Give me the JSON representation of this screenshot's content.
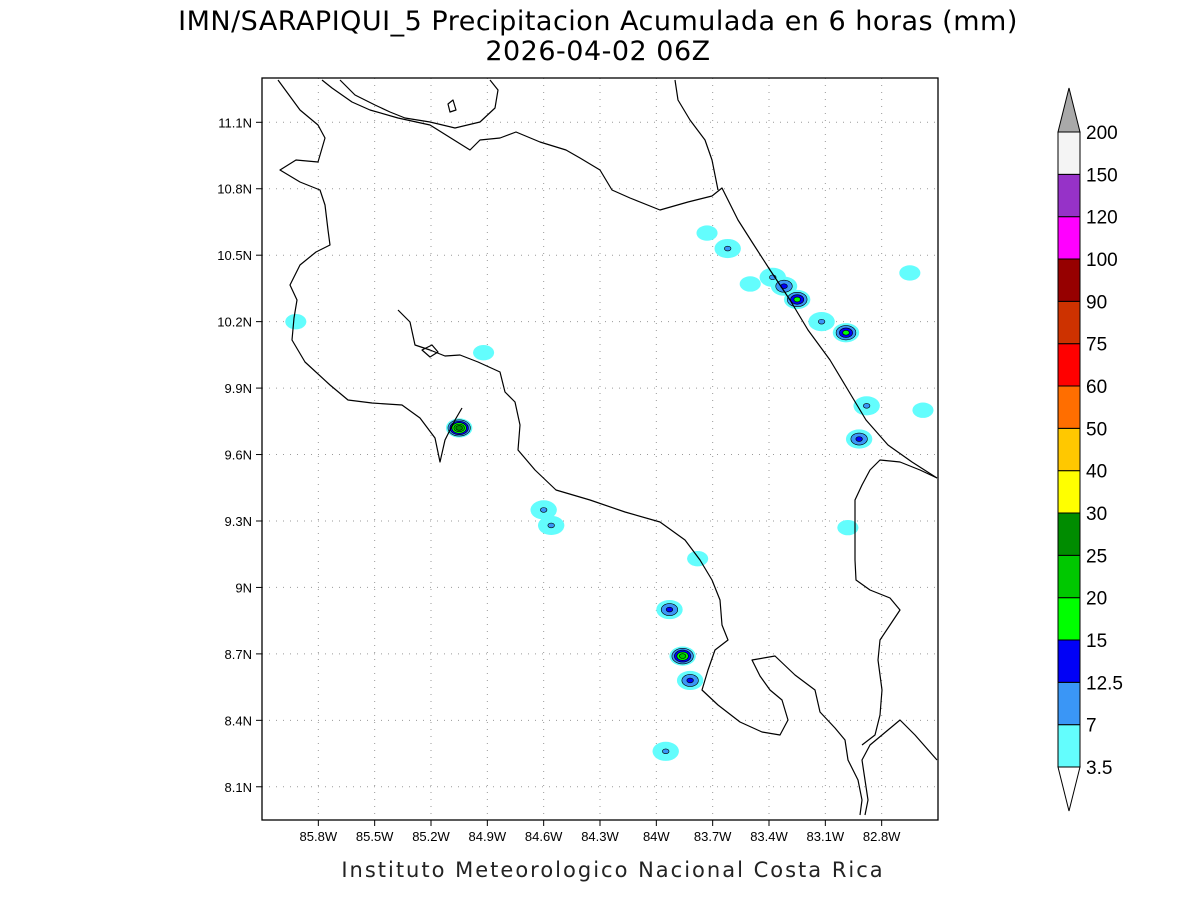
{
  "title": {
    "line1": "IMN/SARAPIQUI_5 Precipitacion Acumulada en 6 horas (mm)",
    "line2": "2026-04-02 06Z"
  },
  "footer": "Instituto Meteorologico Nacional Costa Rica",
  "map": {
    "lon_range": [
      -86.1,
      -82.5
    ],
    "lat_range": [
      7.95,
      11.3
    ],
    "x_ticks": [
      {
        "lon": -85.8,
        "label": "85.8W"
      },
      {
        "lon": -85.5,
        "label": "85.5W"
      },
      {
        "lon": -85.2,
        "label": "85.2W"
      },
      {
        "lon": -84.9,
        "label": "84.9W"
      },
      {
        "lon": -84.6,
        "label": "84.6W"
      },
      {
        "lon": -84.3,
        "label": "84.3W"
      },
      {
        "lon": -84.0,
        "label": "84W"
      },
      {
        "lon": -83.7,
        "label": "83.7W"
      },
      {
        "lon": -83.4,
        "label": "83.4W"
      },
      {
        "lon": -83.1,
        "label": "83.1W"
      },
      {
        "lon": -82.8,
        "label": "82.8W"
      }
    ],
    "y_ticks": [
      {
        "lat": 11.1,
        "label": "11.1N"
      },
      {
        "lat": 10.8,
        "label": "10.8N"
      },
      {
        "lat": 10.5,
        "label": "10.5N"
      },
      {
        "lat": 10.2,
        "label": "10.2N"
      },
      {
        "lat": 9.9,
        "label": "9.9N"
      },
      {
        "lat": 9.6,
        "label": "9.6N"
      },
      {
        "lat": 9.3,
        "label": "9.3N"
      },
      {
        "lat": 9.0,
        "label": "9N"
      },
      {
        "lat": 8.7,
        "label": "8.7N"
      },
      {
        "lat": 8.4,
        "label": "8.4N"
      },
      {
        "lat": 8.1,
        "label": "8.1N"
      }
    ],
    "grid": true
  },
  "colorbar": {
    "levels": [
      "3.5",
      "7",
      "12.5",
      "15",
      "20",
      "25",
      "30",
      "40",
      "50",
      "60",
      "75",
      "90",
      "100",
      "120",
      "150",
      "200"
    ],
    "colors": [
      "#63fdfd",
      "#3a96f6",
      "#0101f6",
      "#00ff00",
      "#00c800",
      "#008c00",
      "#ffff00",
      "#ffc800",
      "#ff6e00",
      "#ff0000",
      "#cd3200",
      "#960000",
      "#ff00ff",
      "#9632c8",
      "#f4f4f4"
    ],
    "over_color": "#a9a9a9",
    "under_color": "#ffffff"
  },
  "precip_cells": [
    {
      "lon": -83.62,
      "lat": 10.53,
      "mm": 7
    },
    {
      "lon": -83.73,
      "lat": 10.6,
      "mm": 3.5
    },
    {
      "lon": -83.38,
      "lat": 10.4,
      "mm": 7
    },
    {
      "lon": -83.32,
      "lat": 10.36,
      "mm": 12.5
    },
    {
      "lon": -83.25,
      "lat": 10.3,
      "mm": 15
    },
    {
      "lon": -83.5,
      "lat": 10.37,
      "mm": 3.5
    },
    {
      "lon": -83.12,
      "lat": 10.2,
      "mm": 7
    },
    {
      "lon": -82.99,
      "lat": 10.15,
      "mm": 15
    },
    {
      "lon": -82.88,
      "lat": 9.82,
      "mm": 7
    },
    {
      "lon": -82.92,
      "lat": 9.67,
      "mm": 12.5
    },
    {
      "lon": -82.58,
      "lat": 9.8,
      "mm": 3.5
    },
    {
      "lon": -82.65,
      "lat": 10.42,
      "mm": 3.5
    },
    {
      "lon": -85.05,
      "lat": 9.72,
      "mm": 25
    },
    {
      "lon": -84.6,
      "lat": 9.35,
      "mm": 7
    },
    {
      "lon": -84.56,
      "lat": 9.28,
      "mm": 7
    },
    {
      "lon": -83.93,
      "lat": 8.9,
      "mm": 12.5
    },
    {
      "lon": -83.86,
      "lat": 8.69,
      "mm": 20
    },
    {
      "lon": -83.82,
      "lat": 8.58,
      "mm": 12.5
    },
    {
      "lon": -83.95,
      "lat": 8.26,
      "mm": 7
    },
    {
      "lon": -83.78,
      "lat": 9.13,
      "mm": 3.5
    },
    {
      "lon": -85.92,
      "lat": 10.2,
      "mm": 3.5
    },
    {
      "lon": -84.92,
      "lat": 10.06,
      "mm": 3.5
    },
    {
      "lon": -82.98,
      "lat": 9.27,
      "mm": 3.5
    }
  ]
}
